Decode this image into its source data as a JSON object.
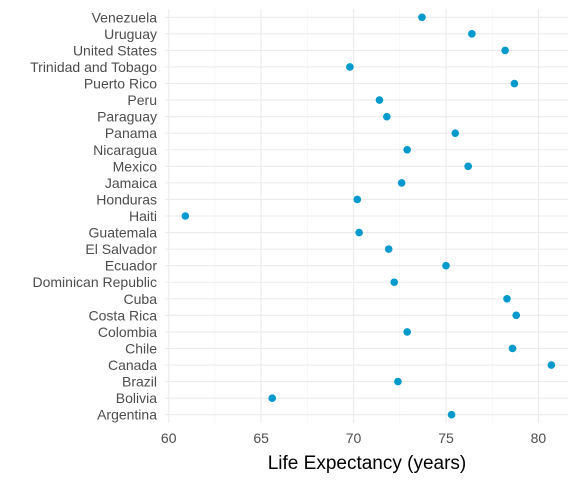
{
  "chart_data": {
    "type": "scatter",
    "xlabel": "Life Expectancy (years)",
    "ylabel": "",
    "xlim": [
      59.8,
      81.6
    ],
    "x_ticks": [
      60,
      65,
      70,
      75,
      80
    ],
    "x_tick_labels": [
      "60",
      "65",
      "70",
      "75",
      "80"
    ],
    "grid": true,
    "legend": "none",
    "point_color": "#0099cc",
    "points": [
      {
        "country": "Argentina",
        "value": 75.3
      },
      {
        "country": "Bolivia",
        "value": 65.6
      },
      {
        "country": "Brazil",
        "value": 72.4
      },
      {
        "country": "Canada",
        "value": 80.7
      },
      {
        "country": "Chile",
        "value": 78.6
      },
      {
        "country": "Colombia",
        "value": 72.9
      },
      {
        "country": "Costa Rica",
        "value": 78.8
      },
      {
        "country": "Cuba",
        "value": 78.3
      },
      {
        "country": "Dominican Republic",
        "value": 72.2
      },
      {
        "country": "Ecuador",
        "value": 75.0
      },
      {
        "country": "El Salvador",
        "value": 71.9
      },
      {
        "country": "Guatemala",
        "value": 70.3
      },
      {
        "country": "Haiti",
        "value": 60.9
      },
      {
        "country": "Honduras",
        "value": 70.2
      },
      {
        "country": "Jamaica",
        "value": 72.6
      },
      {
        "country": "Mexico",
        "value": 76.2
      },
      {
        "country": "Nicaragua",
        "value": 72.9
      },
      {
        "country": "Panama",
        "value": 75.5
      },
      {
        "country": "Paraguay",
        "value": 71.8
      },
      {
        "country": "Peru",
        "value": 71.4
      },
      {
        "country": "Puerto Rico",
        "value": 78.7
      },
      {
        "country": "Trinidad and Tobago",
        "value": 69.8
      },
      {
        "country": "United States",
        "value": 78.2
      },
      {
        "country": "Uruguay",
        "value": 76.4
      },
      {
        "country": "Venezuela",
        "value": 73.7
      }
    ]
  }
}
